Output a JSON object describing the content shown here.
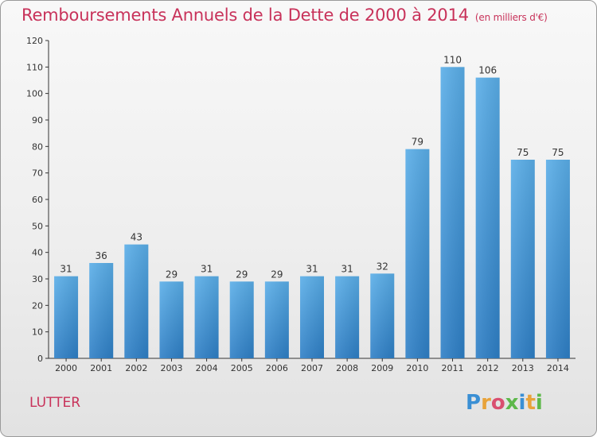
{
  "header": {
    "title": "Remboursements Annuels de la Dette de 2000 à 2014",
    "subtitle": "(en milliers d'€)"
  },
  "footer": {
    "commune": "LUTTER",
    "logo_text": "Proxiti"
  },
  "colors": {
    "title": "#c8325a",
    "bar_top": "#5aaee8",
    "bar_bottom": "#2e7fc6"
  },
  "chart_data": {
    "type": "bar",
    "title": "Remboursements Annuels de la Dette de 2000 à 2014",
    "subtitle": "(en milliers d'€)",
    "categories": [
      "2000",
      "2001",
      "2002",
      "2003",
      "2004",
      "2005",
      "2006",
      "2007",
      "2008",
      "2009",
      "2010",
      "2011",
      "2012",
      "2013",
      "2014"
    ],
    "values": [
      31,
      36,
      43,
      29,
      31,
      29,
      29,
      31,
      31,
      32,
      79,
      110,
      106,
      75,
      75
    ],
    "ylim": [
      0,
      120
    ],
    "yticks": [
      0,
      10,
      20,
      30,
      40,
      50,
      60,
      70,
      80,
      90,
      100,
      110,
      120
    ],
    "grid": false,
    "data_labels": true
  }
}
